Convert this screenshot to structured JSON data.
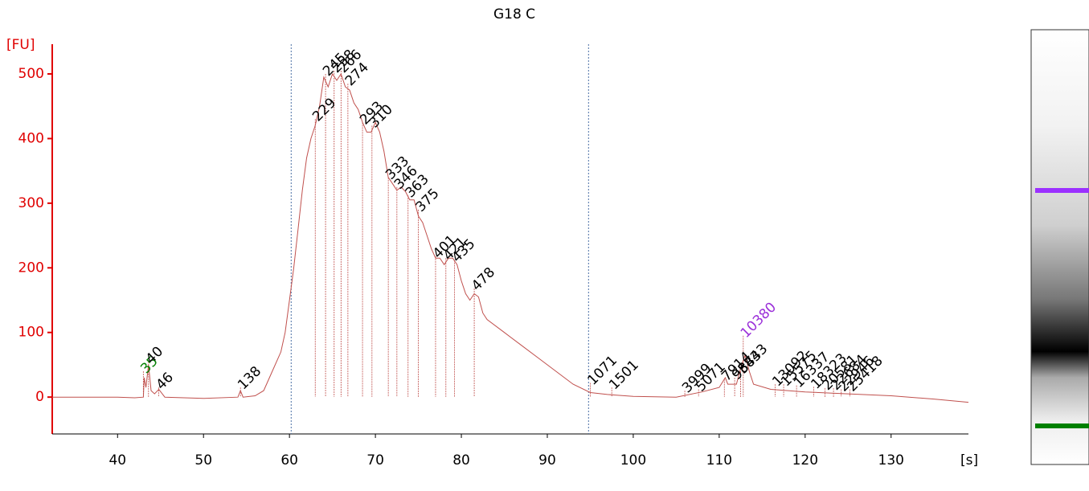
{
  "chart_data": {
    "type": "line",
    "title": "G18 C",
    "y_label": "[FU]",
    "x_label": "[s]",
    "xlim": [
      32.4,
      139
    ],
    "ylim": [
      -57,
      546
    ],
    "xticks": [
      40,
      50,
      60,
      70,
      80,
      90,
      100,
      110,
      120,
      130
    ],
    "yticks": [
      0,
      100,
      200,
      300,
      400,
      500
    ],
    "region": [
      60.2,
      94.8
    ],
    "series": [
      {
        "color": "#c0504d",
        "x": [
          32.4,
          40,
          42,
          43,
          43.1,
          43.3,
          43.6,
          43.9,
          44.3,
          44.8,
          45.5,
          50,
          54,
          54.3,
          54.6,
          56,
          57,
          58,
          59,
          59.5,
          60,
          60.5,
          61,
          61.5,
          62,
          62.5,
          63,
          63.5,
          64,
          64.5,
          65,
          65.5,
          66,
          66.5,
          67,
          67.5,
          68,
          68.5,
          69,
          69.5,
          70,
          70.5,
          71,
          71.5,
          72,
          72.5,
          73,
          73.5,
          74,
          74.5,
          75,
          75.5,
          76,
          76.5,
          77,
          77.5,
          78,
          78.5,
          79,
          79.5,
          80,
          80.5,
          81,
          81.5,
          82,
          82.5,
          83,
          85,
          87,
          89,
          91,
          93,
          95,
          97,
          100,
          105,
          108,
          110,
          110.7,
          111,
          112,
          112.5,
          113,
          113.5,
          114,
          116,
          120,
          125,
          130,
          135,
          139
        ],
        "values": [
          0,
          0,
          -1,
          0,
          30,
          15,
          50,
          10,
          5,
          12,
          0,
          -2,
          0,
          10,
          0,
          2,
          10,
          40,
          70,
          100,
          150,
          200,
          260,
          320,
          370,
          400,
          420,
          450,
          495,
          480,
          500,
          490,
          500,
          480,
          475,
          455,
          445,
          425,
          410,
          410,
          425,
          410,
          380,
          340,
          330,
          320,
          325,
          318,
          305,
          305,
          280,
          270,
          250,
          230,
          215,
          215,
          205,
          215,
          215,
          205,
          180,
          160,
          150,
          160,
          155,
          130,
          120,
          100,
          80,
          60,
          40,
          20,
          7,
          4,
          1,
          0,
          8,
          15,
          30,
          20,
          20,
          45,
          65,
          40,
          20,
          12,
          8,
          5,
          2,
          -3,
          -8
        ]
      }
    ],
    "annotations": [
      {
        "x": 43.0,
        "y": 40,
        "text": "35",
        "color": "#008000"
      },
      {
        "x": 43.6,
        "y": 55,
        "text": "40"
      },
      {
        "x": 44.8,
        "y": 15,
        "text": "46"
      },
      {
        "x": 54.3,
        "y": 15,
        "text": "138"
      },
      {
        "x": 63.0,
        "y": 430,
        "text": "229"
      },
      {
        "x": 64.2,
        "y": 500,
        "text": "245"
      },
      {
        "x": 65.2,
        "y": 505,
        "text": "258"
      },
      {
        "x": 66.0,
        "y": 505,
        "text": "266"
      },
      {
        "x": 66.8,
        "y": 485,
        "text": "274"
      },
      {
        "x": 68.5,
        "y": 425,
        "text": "293"
      },
      {
        "x": 69.6,
        "y": 420,
        "text": "310"
      },
      {
        "x": 71.5,
        "y": 340,
        "text": "333"
      },
      {
        "x": 72.5,
        "y": 325,
        "text": "346"
      },
      {
        "x": 73.8,
        "y": 312,
        "text": "363"
      },
      {
        "x": 75.0,
        "y": 290,
        "text": "375"
      },
      {
        "x": 77.0,
        "y": 218,
        "text": "401"
      },
      {
        "x": 78.2,
        "y": 215,
        "text": "421"
      },
      {
        "x": 79.2,
        "y": 212,
        "text": "435"
      },
      {
        "x": 81.5,
        "y": 168,
        "text": "478"
      },
      {
        "x": 95.0,
        "y": 22,
        "text": "1071"
      },
      {
        "x": 97.5,
        "y": 15,
        "text": "1501"
      },
      {
        "x": 106.0,
        "y": 10,
        "text": "3999"
      },
      {
        "x": 107.6,
        "y": 12,
        "text": "5071"
      },
      {
        "x": 110.6,
        "y": 28,
        "text": "7914"
      },
      {
        "x": 111.8,
        "y": 30,
        "text": "9583"
      },
      {
        "x": 112.5,
        "y": 40,
        "text": "8443"
      },
      {
        "x": 112.8,
        "y": 95,
        "text": "10380",
        "color": "#9b30d9"
      },
      {
        "x": 116.5,
        "y": 20,
        "text": "13092"
      },
      {
        "x": 117.5,
        "y": 20,
        "text": "15575"
      },
      {
        "x": 119.0,
        "y": 18,
        "text": "16337"
      },
      {
        "x": 121.0,
        "y": 16,
        "text": "18323"
      },
      {
        "x": 122.3,
        "y": 14,
        "text": "20581"
      },
      {
        "x": 123.3,
        "y": 14,
        "text": "22684"
      },
      {
        "x": 124.2,
        "y": 12,
        "text": "22946"
      },
      {
        "x": 125.2,
        "y": 12,
        "text": "25418"
      }
    ]
  }
}
